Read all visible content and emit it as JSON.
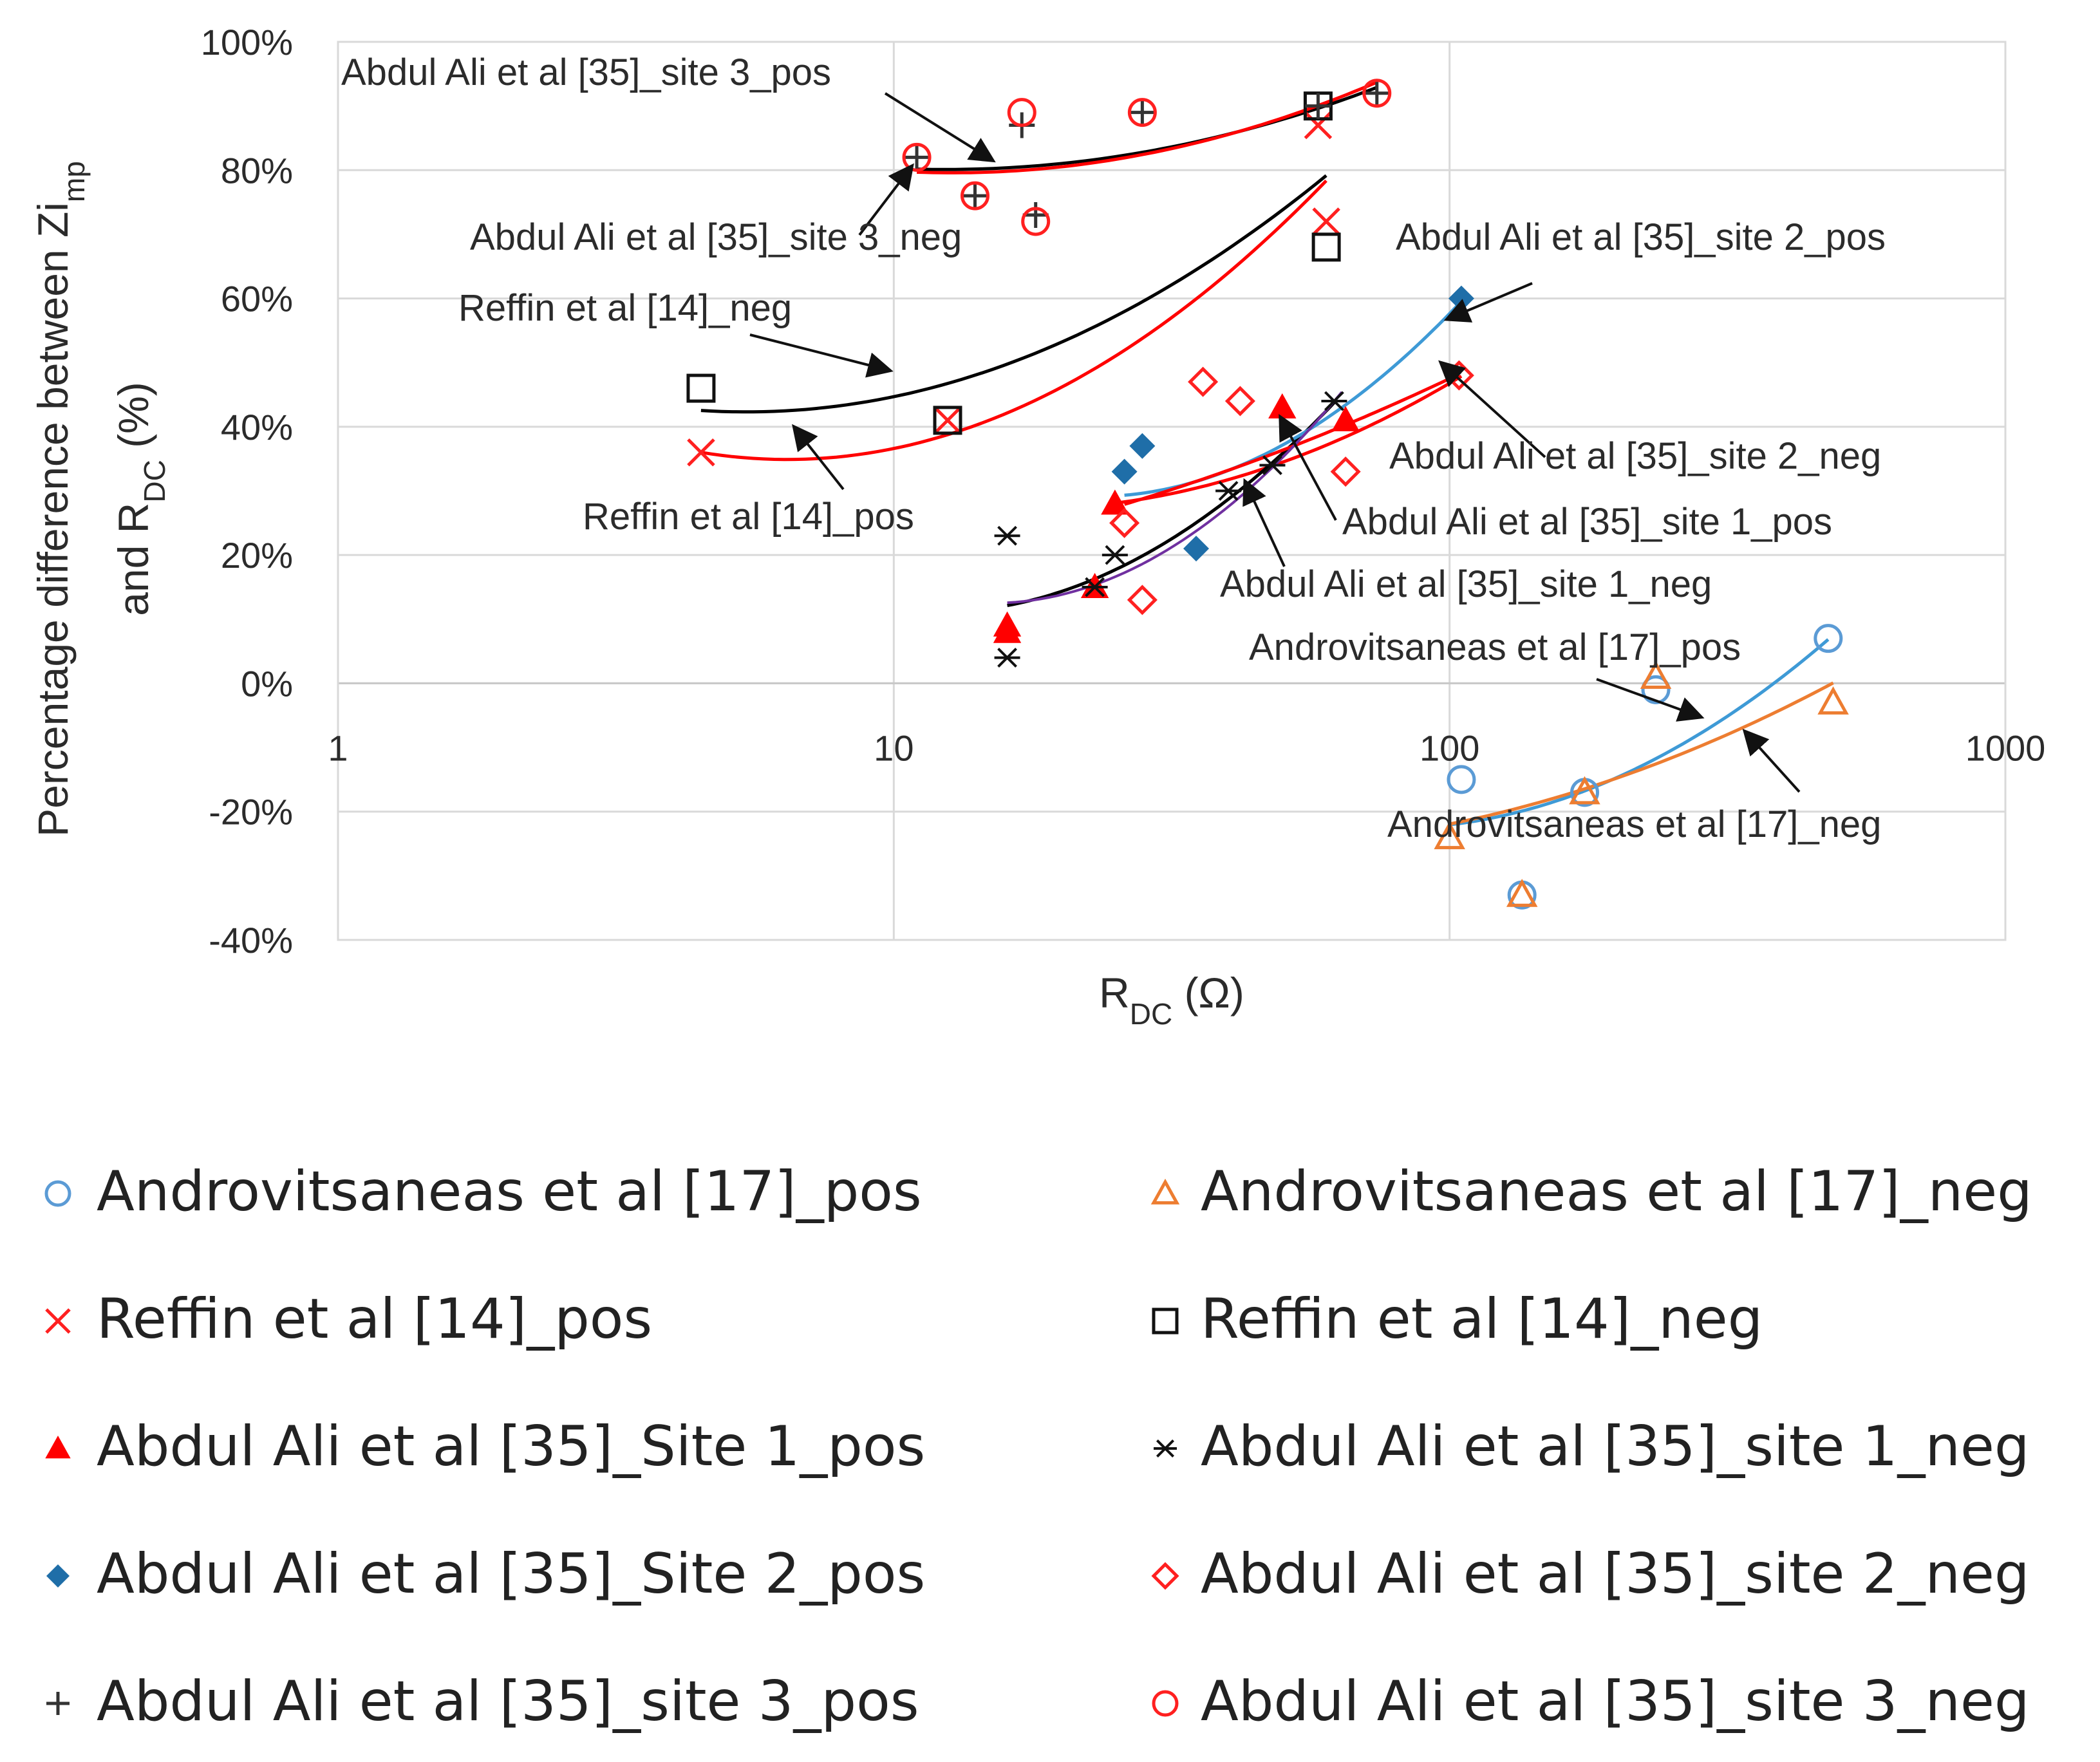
{
  "chart_data": {
    "type": "scatter",
    "title": "",
    "xlabel": "R_DC (Ω)",
    "ylabel_line1": "Percentage difference between Zi",
    "ylabel_line1_sub": "mp",
    "ylabel_line2": "and R",
    "ylabel_line2_sub": "DC",
    "ylabel_line2_end": " (%)",
    "xlabel_main": "R",
    "xlabel_sub": "DC",
    "xlabel_end": " (Ω)",
    "x_scale": "log",
    "xlim": [
      1,
      1000
    ],
    "ylim": [
      -40,
      100
    ],
    "grid": true,
    "x_ticks": [
      {
        "value": 1,
        "label": "1"
      },
      {
        "value": 10,
        "label": "10"
      },
      {
        "value": 100,
        "label": "100"
      },
      {
        "value": 1000,
        "label": "1000"
      }
    ],
    "y_ticks": [
      {
        "value": 100,
        "label": "100%"
      },
      {
        "value": 80,
        "label": "80%"
      },
      {
        "value": 60,
        "label": "60%"
      },
      {
        "value": 40,
        "label": "40%"
      },
      {
        "value": 20,
        "label": "20%"
      },
      {
        "value": 0,
        "label": "0%"
      },
      {
        "value": -20,
        "label": "-20%"
      },
      {
        "value": -40,
        "label": "-40%"
      }
    ],
    "series": [
      {
        "name": "Androvitsaneas et al [17]_pos",
        "marker": "circle-open",
        "color": "#5b9bd5",
        "points": [
          [
            105,
            -15
          ],
          [
            135,
            -33
          ],
          [
            175,
            -17
          ],
          [
            235,
            -1
          ],
          [
            480,
            7
          ]
        ],
        "trend": {
          "color": "#3e9ad6",
          "x_from": 100,
          "x_to": 480,
          "fn": "exp",
          "a": -21.6,
          "b": 29,
          "c": 4.1e-07,
          "power": 2.4
        }
      },
      {
        "name": "Androvitsaneas et al [17]_neg",
        "marker": "triangle-open",
        "color": "#ed7d31",
        "points": [
          [
            100,
            -24
          ],
          [
            135,
            -33
          ],
          [
            175,
            -17
          ],
          [
            235,
            1
          ],
          [
            490,
            -3
          ]
        ],
        "trend": {
          "color": "#ed7d31",
          "x_from": 100,
          "x_to": 490
        }
      },
      {
        "name": "Reffin et al [14]_pos",
        "marker": "x",
        "color": "#ff2020",
        "points": [
          [
            4.5,
            36
          ],
          [
            12.5,
            41
          ],
          [
            58,
            87
          ],
          [
            60,
            72
          ]
        ],
        "trend": {
          "color": "#ff0000",
          "x_from": 4.5,
          "x_to": 60
        }
      },
      {
        "name": "Reffin et al [14]_neg",
        "marker": "square-open",
        "color": "#111111",
        "points": [
          [
            4.5,
            46
          ],
          [
            12.5,
            41
          ],
          [
            58,
            90
          ],
          [
            60,
            68
          ]
        ],
        "trend": {
          "color": "#000000",
          "x_from": 4.5,
          "x_to": 60
        }
      },
      {
        "name": "Abdul Ali et al [35]_Site 1_pos",
        "marker": "triangle-filled",
        "color": "#ff0000",
        "points": [
          [
            16,
            8
          ],
          [
            16,
            9
          ],
          [
            23,
            15
          ],
          [
            25,
            28
          ],
          [
            50,
            43
          ],
          [
            65,
            41
          ]
        ],
        "trend": {
          "color": "#ff0000",
          "x_from": 25,
          "x_to": 105
        }
      },
      {
        "name": "Abdul Ali et al [35]_site 1_neg",
        "marker": "asterisk",
        "color": "#111111",
        "points": [
          [
            16,
            4
          ],
          [
            16,
            23
          ],
          [
            23,
            15
          ],
          [
            25,
            20
          ],
          [
            40,
            30
          ],
          [
            48,
            34
          ],
          [
            62,
            44
          ]
        ],
        "trend": {
          "color": "#000000",
          "x_from": 16,
          "x_to": 62
        }
      },
      {
        "name": "Abdul Ali et al [35]_Site 2_pos",
        "marker": "diamond-filled",
        "color": "#1f6ea8",
        "points": [
          [
            26,
            33
          ],
          [
            28,
            37
          ],
          [
            35,
            21
          ],
          [
            105,
            60
          ]
        ],
        "trend": {
          "color": "#3e9ad6",
          "x_from": 26,
          "x_to": 105
        }
      },
      {
        "name": "Abdul Ali et al [35]_site 2_neg",
        "marker": "diamond-open",
        "color": "#ff2020",
        "points": [
          [
            26,
            25
          ],
          [
            28,
            13
          ],
          [
            36,
            47
          ],
          [
            42,
            44
          ],
          [
            65,
            33
          ],
          [
            104,
            48
          ]
        ],
        "trend": {
          "color": "#ff0000",
          "x_from": 26,
          "x_to": 104
        }
      },
      {
        "name": "Abdul Ali et al [35]_site 3_pos",
        "marker": "plus",
        "color": "#333333",
        "points": [
          [
            11,
            82
          ],
          [
            14,
            76
          ],
          [
            17,
            87
          ],
          [
            18,
            73
          ],
          [
            28,
            89
          ],
          [
            58,
            90
          ],
          [
            74,
            92
          ]
        ],
        "trend": {
          "color": "#000000",
          "x_from": 11,
          "x_to": 74
        }
      },
      {
        "name": "Abdul Ali et al [35]_site 3_neg",
        "marker": "circle-open",
        "color": "#ff2020",
        "points": [
          [
            11,
            82
          ],
          [
            14,
            76
          ],
          [
            17,
            89
          ],
          [
            18,
            72
          ],
          [
            28,
            89
          ],
          [
            74,
            92
          ]
        ],
        "trend": {
          "color": "#ff0000",
          "x_from": 11,
          "x_to": 74
        }
      }
    ],
    "annotations": [
      {
        "text": "Abdul Ali et al [35]_site 3_pos"
      },
      {
        "text": "Abdul Ali et al [35]_site 3_neg"
      },
      {
        "text": "Reffin et al [14]_neg"
      },
      {
        "text": "Reffin et al [14]_pos"
      },
      {
        "text": "Abdul Ali et al [35]_site 2_pos"
      },
      {
        "text": "Abdul Ali et al [35]_site 2_neg"
      },
      {
        "text": "Abdul Ali et al [35]_site 1_pos"
      },
      {
        "text": "Abdul Ali et al [35]_site 1_neg"
      },
      {
        "text": "Androvitsaneas et al [17]_pos"
      },
      {
        "text": "Androvitsaneas et al [17]_neg"
      }
    ],
    "legend": {
      "placement": "bottom",
      "entries": [
        "Androvitsaneas et al [17]_pos",
        "Androvitsaneas et al [17]_neg",
        "Reffin et al [14]_pos",
        "Reffin et al [14]_neg",
        "Abdul Ali et al [35]_Site 1_pos",
        "Abdul Ali et al [35]_site 1_neg",
        "Abdul Ali et al [35]_Site 2_pos",
        "Abdul Ali et al [35]_site 2_neg",
        "Abdul Ali et al [35]_site 3_pos",
        "Abdul Ali et al [35]_site 3_neg"
      ]
    }
  }
}
